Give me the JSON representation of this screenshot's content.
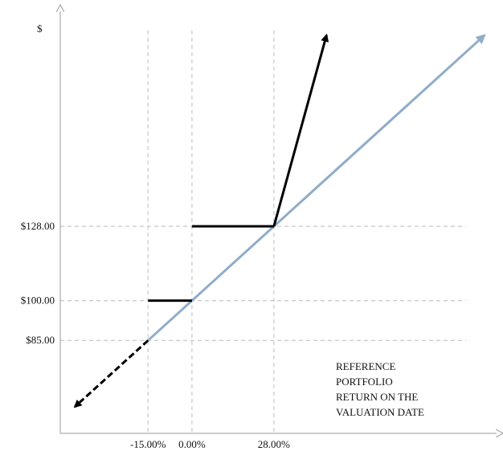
{
  "chart_data": {
    "type": "line",
    "y_axis_label": "$",
    "y_ticks": [
      {
        "value": 85,
        "label": "$85.00"
      },
      {
        "value": 100,
        "label": "$100.00"
      },
      {
        "value": 128,
        "label": "$128.00"
      }
    ],
    "x_ticks": [
      {
        "value": -15,
        "label": "-15.00%"
      },
      {
        "value": 0,
        "label": "0.00%"
      },
      {
        "value": 28,
        "label": "28.00%"
      }
    ],
    "annotation": [
      "REFERENCE",
      "PORTFOLIO",
      "RETURN ON THE",
      "VALUATION DATE"
    ],
    "colors": {
      "reference_line": "#90acc8",
      "payoff": "#000000",
      "grid": "#c8c8c8",
      "axis": "#9a9a9a"
    },
    "series": [
      {
        "style": "reference",
        "points": [
          [
            -15,
            85
          ],
          [
            0,
            100
          ],
          [
            28,
            128
          ],
          [
            100,
            200
          ]
        ]
      },
      {
        "style": "payoff-downside",
        "points": [
          [
            -15,
            85
          ],
          [
            -40,
            60
          ]
        ]
      },
      {
        "style": "payoff-flat",
        "points": [
          [
            -15,
            100
          ],
          [
            0,
            100
          ]
        ]
      },
      {
        "style": "payoff-flat",
        "points": [
          [
            0,
            128
          ],
          [
            28,
            128
          ]
        ]
      },
      {
        "style": "payoff-upside",
        "points": [
          [
            28,
            128
          ],
          [
            46,
            200
          ]
        ]
      }
    ],
    "xlim": [
      -45,
      103
    ],
    "ylim": [
      50,
      206
    ],
    "grid": "dashed at tick values"
  }
}
